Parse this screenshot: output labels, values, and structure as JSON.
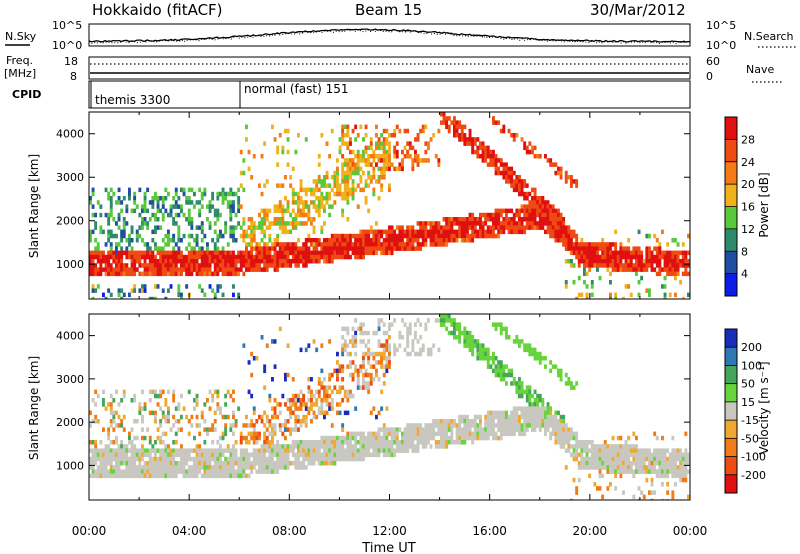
{
  "header": {
    "site": "Hokkaido (fitACF)",
    "beam": "Beam 15",
    "date": "30/Mar/2012"
  },
  "noise_panel": {
    "left_label": "N.Sky",
    "right_label": "N.Search",
    "tick_top": "10^5",
    "tick_bottom": "10^0"
  },
  "freq_panel": {
    "left_label_top": "Freq.",
    "left_label_bottom": "[MHz]",
    "left_tick_top": "18",
    "left_tick_bottom": "8",
    "right_label": "Nave",
    "right_tick_top": "60",
    "right_tick_bottom": "0"
  },
  "cpid_panel": {
    "label": "CPID",
    "modes": [
      "themis 3300",
      "normal (fast) 151"
    ]
  },
  "colors": {
    "power": [
      "#0a1ee8",
      "#1f4fa0",
      "#2e8a6b",
      "#58c83c",
      "#f0b21a",
      "#f57c14",
      "#ee4a12",
      "#e01010"
    ],
    "velocity": [
      "#1a2bb8",
      "#2f77b5",
      "#45a65a",
      "#66d43a",
      "#c8c8c0",
      "#f0a830",
      "#f07c18",
      "#ee4c12",
      "#e01010"
    ]
  },
  "chart_data": [
    {
      "type": "heatmap",
      "name": "power",
      "title": "",
      "xlabel": "Time UT",
      "ylabel": "Slant Range [km]",
      "xlim": [
        0,
        24
      ],
      "ylim": [
        200,
        4500
      ],
      "x_ticks": [
        "00:00",
        "04:00",
        "08:00",
        "12:00",
        "16:00",
        "20:00",
        "00:00"
      ],
      "y_ticks": [
        1000,
        2000,
        3000,
        4000
      ],
      "colorbar": {
        "label": "Power [dB]",
        "ticks": [
          4,
          8,
          12,
          16,
          20,
          24,
          28
        ],
        "range": [
          0,
          32
        ]
      }
    },
    {
      "type": "heatmap",
      "name": "velocity",
      "title": "",
      "xlabel": "Time UT",
      "ylabel": "Slant Range [km]",
      "xlim": [
        0,
        24
      ],
      "ylim": [
        200,
        4500
      ],
      "x_ticks": [
        "00:00",
        "04:00",
        "08:00",
        "12:00",
        "16:00",
        "20:00",
        "00:00"
      ],
      "y_ticks": [
        1000,
        2000,
        3000,
        4000
      ],
      "colorbar": {
        "label": "Velocity [m s⁻¹]",
        "ticks": [
          200,
          100,
          50,
          15,
          -15,
          -50,
          -100,
          -200
        ]
      }
    }
  ]
}
